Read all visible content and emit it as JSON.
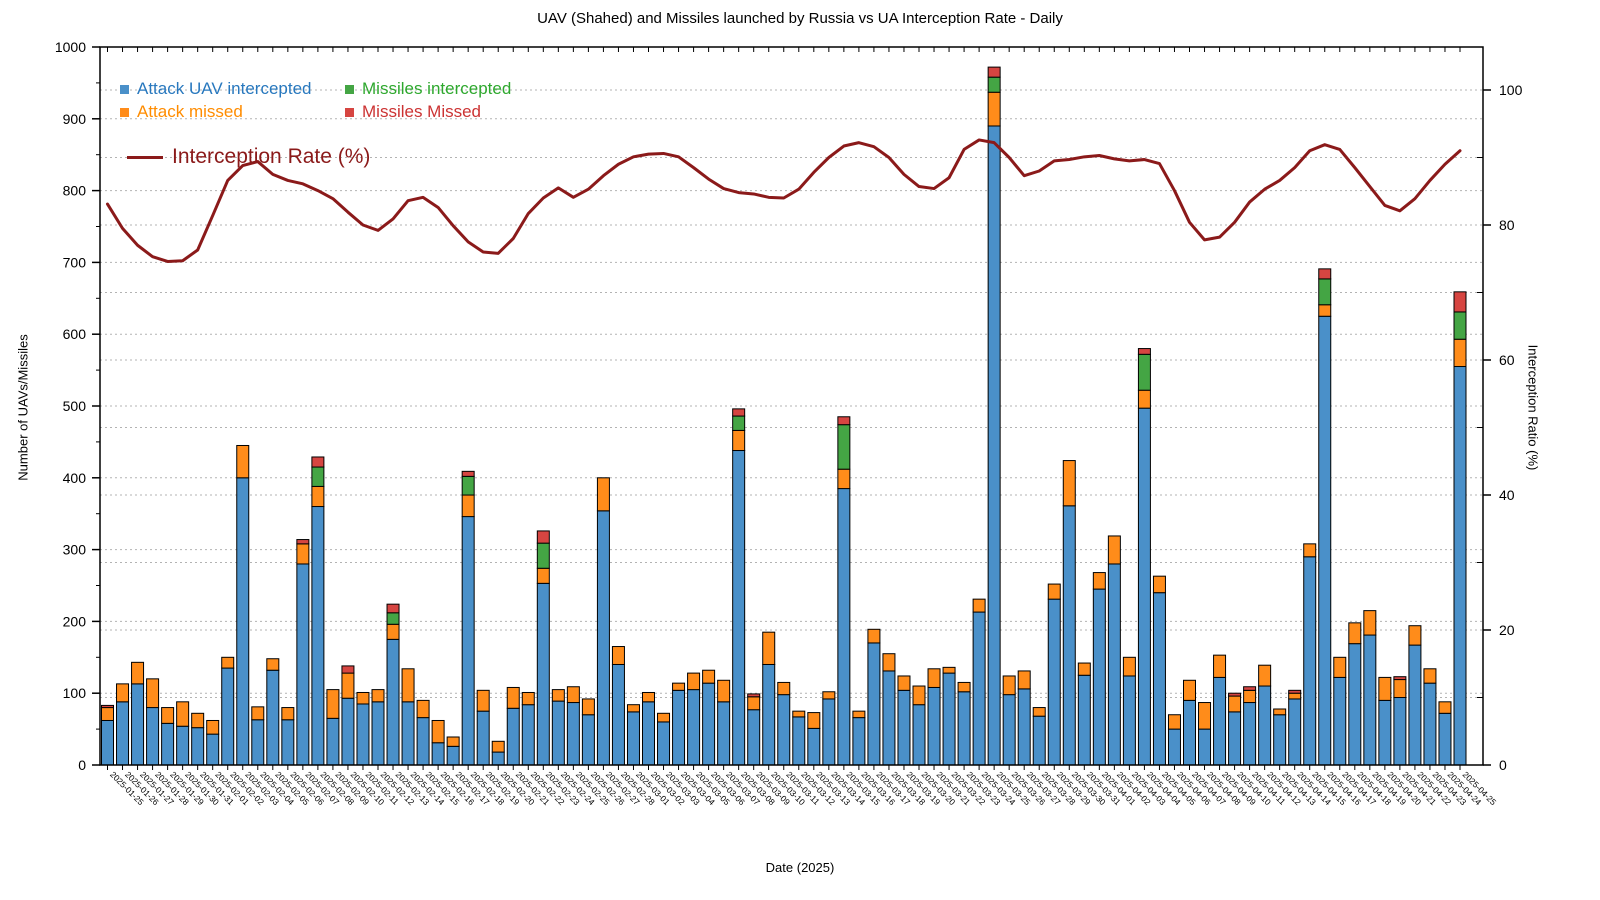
{
  "title": "UAV (Shahed) and Missiles launched by Russia vs UA Interception Rate - Daily",
  "legend": {
    "uav_intercepted": "Attack UAV intercepted",
    "attack_missed": "Attack missed",
    "missiles_intercepted": "Missiles intercepted",
    "missiles_missed": "Missiles Missed",
    "rate": "Interception Rate (%)"
  },
  "axes": {
    "y_left_label": "Number of UAVs/Missiles",
    "y_right_label": "Interception Ratio (%)",
    "x_label": "Date (2025)",
    "y_left_ticks": [
      0,
      100,
      200,
      300,
      400,
      500,
      600,
      700,
      800,
      900,
      1000
    ],
    "y_right_ticks": [
      0,
      20,
      40,
      60,
      80,
      100
    ]
  },
  "colors": {
    "uav_intercepted": "#4a90c9",
    "attack_missed": "#ff8c1a",
    "missiles_intercepted": "#44a544",
    "missiles_missed": "#d64541",
    "rate_line": "#8b1a1a",
    "legend_text_blue": "#2878be",
    "legend_text_orange": "#ff8c00",
    "legend_text_green": "#2ea82e",
    "legend_text_red": "#cc3333",
    "grid": "#b3b3b3"
  },
  "chart_data": {
    "type": "bar",
    "subtype": "stacked-bars-with-line",
    "title": "UAV (Shahed) and Missiles launched by Russia vs UA Interception Rate - Daily",
    "xlabel": "Date (2025)",
    "ylabel_left": "Number of UAVs/Missiles",
    "ylabel_right": "Interception Ratio (%)",
    "ylim_left": [
      0,
      1000
    ],
    "ylim_right": [
      0,
      106.4
    ],
    "grid": "dotted",
    "legend_position": "top-left-inside",
    "categories": [
      "2025-01-25",
      "2025-01-26",
      "2025-01-27",
      "2025-01-28",
      "2025-01-29",
      "2025-01-30",
      "2025-01-31",
      "2025-02-01",
      "2025-02-02",
      "2025-02-03",
      "2025-02-04",
      "2025-02-05",
      "2025-02-06",
      "2025-02-07",
      "2025-02-08",
      "2025-02-09",
      "2025-02-10",
      "2025-02-11",
      "2025-02-12",
      "2025-02-13",
      "2025-02-14",
      "2025-02-15",
      "2025-02-16",
      "2025-02-17",
      "2025-02-18",
      "2025-02-19",
      "2025-02-20",
      "2025-02-21",
      "2025-02-22",
      "2025-02-23",
      "2025-02-24",
      "2025-02-25",
      "2025-02-26",
      "2025-02-27",
      "2025-02-28",
      "2025-03-01",
      "2025-03-02",
      "2025-03-03",
      "2025-03-04",
      "2025-03-05",
      "2025-03-06",
      "2025-03-07",
      "2025-03-08",
      "2025-03-09",
      "2025-03-10",
      "2025-03-11",
      "2025-03-12",
      "2025-03-13",
      "2025-03-14",
      "2025-03-15",
      "2025-03-16",
      "2025-03-17",
      "2025-03-18",
      "2025-03-19",
      "2025-03-20",
      "2025-03-21",
      "2025-03-22",
      "2025-03-23",
      "2025-03-24",
      "2025-03-25",
      "2025-03-26",
      "2025-03-27",
      "2025-03-28",
      "2025-03-29",
      "2025-03-30",
      "2025-03-31",
      "2025-04-01",
      "2025-04-02",
      "2025-04-03",
      "2025-04-04",
      "2025-04-05",
      "2025-04-06",
      "2025-04-07",
      "2025-04-08",
      "2025-04-09",
      "2025-04-10",
      "2025-04-11",
      "2025-04-12",
      "2025-04-13",
      "2025-04-14",
      "2025-04-15",
      "2025-04-16",
      "2025-04-17",
      "2025-04-18",
      "2025-04-19",
      "2025-04-20",
      "2025-04-21",
      "2025-04-22",
      "2025-04-23",
      "2025-04-24",
      "2025-04-25"
    ],
    "series": [
      {
        "name": "Attack UAV intercepted",
        "color_key": "uav_intercepted",
        "values": [
          62,
          88,
          113,
          80,
          58,
          54,
          52,
          43,
          135,
          400,
          63,
          132,
          63,
          280,
          360,
          65,
          93,
          85,
          88,
          175,
          88,
          66,
          31,
          26,
          346,
          75,
          18,
          79,
          84,
          253,
          89,
          87,
          70,
          354,
          140,
          74,
          88,
          60,
          104,
          105,
          114,
          88,
          438,
          77,
          140,
          98,
          67,
          51,
          92,
          385,
          66,
          170,
          131,
          104,
          84,
          108,
          128,
          102,
          213,
          890,
          98,
          106,
          68,
          231,
          361,
          125,
          245,
          280,
          124,
          497,
          240,
          50,
          90,
          50,
          122,
          74,
          87,
          110,
          70,
          92,
          290,
          625,
          122,
          169,
          181,
          90,
          94,
          167,
          114,
          72,
          555
        ]
      },
      {
        "name": "Attack missed",
        "color_key": "attack_missed",
        "values": [
          18,
          25,
          30,
          40,
          22,
          34,
          20,
          19,
          15,
          45,
          18,
          16,
          17,
          28,
          28,
          40,
          35,
          16,
          17,
          21,
          46,
          24,
          31,
          13,
          30,
          29,
          15,
          29,
          17,
          21,
          16,
          22,
          22,
          46,
          25,
          10,
          13,
          12,
          10,
          23,
          18,
          30,
          28,
          18,
          45,
          17,
          8,
          22,
          10,
          27,
          9,
          19,
          24,
          20,
          26,
          26,
          8,
          13,
          18,
          47,
          26,
          25,
          12,
          21,
          63,
          17,
          23,
          39,
          26,
          25,
          23,
          20,
          28,
          37,
          31,
          22,
          17,
          29,
          8,
          8,
          18,
          16,
          28,
          29,
          34,
          32,
          25,
          27,
          20,
          16,
          38
        ]
      },
      {
        "name": "Missiles intercepted",
        "color_key": "missiles_intercepted",
        "values": [
          0,
          0,
          0,
          0,
          0,
          0,
          0,
          0,
          0,
          0,
          0,
          0,
          0,
          0,
          27,
          0,
          0,
          0,
          0,
          16,
          0,
          0,
          0,
          0,
          26,
          0,
          0,
          0,
          0,
          35,
          0,
          0,
          0,
          0,
          0,
          0,
          0,
          0,
          0,
          0,
          0,
          0,
          20,
          0,
          0,
          0,
          0,
          0,
          0,
          62,
          0,
          0,
          0,
          0,
          0,
          0,
          0,
          0,
          0,
          21,
          0,
          0,
          0,
          0,
          0,
          0,
          0,
          0,
          0,
          50,
          0,
          0,
          0,
          0,
          0,
          0,
          0,
          0,
          0,
          0,
          0,
          36,
          0,
          0,
          0,
          0,
          0,
          0,
          0,
          0,
          38
        ]
      },
      {
        "name": "Missiles Missed",
        "color_key": "missiles_missed",
        "values": [
          3,
          0,
          0,
          0,
          0,
          0,
          0,
          0,
          0,
          0,
          0,
          0,
          0,
          6,
          14,
          0,
          10,
          0,
          0,
          12,
          0,
          0,
          0,
          0,
          7,
          0,
          0,
          0,
          0,
          17,
          0,
          0,
          0,
          0,
          0,
          0,
          0,
          0,
          0,
          0,
          0,
          0,
          10,
          4,
          0,
          0,
          0,
          0,
          0,
          11,
          0,
          0,
          0,
          0,
          0,
          0,
          0,
          0,
          0,
          14,
          0,
          0,
          0,
          0,
          0,
          0,
          0,
          0,
          0,
          8,
          0,
          0,
          0,
          0,
          0,
          4,
          5,
          0,
          0,
          4,
          0,
          14,
          0,
          0,
          0,
          0,
          4,
          0,
          0,
          0,
          28
        ]
      }
    ],
    "line": {
      "name": "Interception Rate (%)",
      "axis": "right",
      "color_key": "rate_line",
      "values": [
        83.1,
        79.5,
        77.0,
        75.3,
        74.6,
        74.7,
        76.3,
        81.4,
        86.6,
        88.8,
        89.4,
        87.5,
        86.6,
        86.1,
        85.1,
        83.9,
        81.9,
        80.0,
        79.2,
        80.9,
        83.6,
        84.1,
        82.6,
        79.9,
        77.5,
        76.0,
        75.8,
        78.0,
        81.7,
        84.0,
        85.5,
        84.1,
        85.3,
        87.3,
        89.0,
        90.1,
        90.5,
        90.6,
        90.1,
        88.5,
        86.8,
        85.4,
        84.8,
        84.6,
        84.1,
        84.0,
        85.3,
        87.8,
        90.0,
        91.7,
        92.2,
        91.6,
        90.0,
        87.5,
        85.7,
        85.4,
        87.0,
        91.2,
        92.6,
        92.2,
        90.0,
        87.3,
        88.0,
        89.5,
        89.7,
        90.1,
        90.3,
        89.8,
        89.5,
        89.7,
        89.1,
        85.1,
        80.4,
        77.8,
        78.2,
        80.4,
        83.4,
        85.3,
        86.6,
        88.5,
        91.0,
        91.9,
        91.2,
        88.5,
        85.7,
        82.9,
        82.1,
        83.9,
        86.6,
        89.0,
        91.0
      ]
    }
  }
}
